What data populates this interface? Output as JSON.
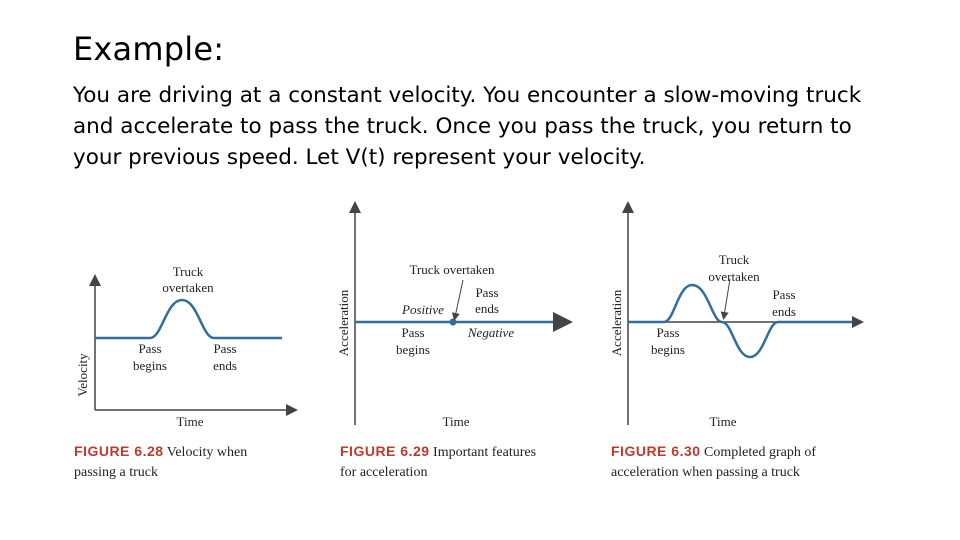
{
  "slide": {
    "title": "Example:",
    "paragraph": "You are driving at a constant velocity.  You encounter a slow-moving truck and accelerate to pass the truck.  Once you pass the truck, you return to your previous speed.  Let V(t) represent your velocity."
  },
  "figures": [
    {
      "id": "fig-6-28",
      "ylabel": "Velocity",
      "xlabel": "Time",
      "labels": {
        "peak": [
          "Truck",
          "overtaken"
        ],
        "begin": [
          "Pass",
          "begins"
        ],
        "end": [
          "Pass",
          "ends"
        ]
      },
      "caption_num": "FIGURE 6.28",
      "caption_text": [
        "Velocity when",
        "passing a truck"
      ]
    },
    {
      "id": "fig-6-29",
      "ylabel": "Acceleration",
      "xlabel": "Time",
      "labels": {
        "overtaken": "Truck overtaken",
        "end": [
          "Pass",
          "ends"
        ],
        "positive": "Positive",
        "negative": "Negative",
        "begin": [
          "Pass",
          "begins"
        ]
      },
      "caption_num": "FIGURE 6.29",
      "caption_text": [
        "Important features",
        "for acceleration"
      ]
    },
    {
      "id": "fig-6-30",
      "ylabel": "Acceleration",
      "xlabel": "Time",
      "labels": {
        "overtaken": [
          "Truck",
          "overtaken"
        ],
        "begin": [
          "Pass",
          "begins"
        ],
        "end": [
          "Pass",
          "ends"
        ]
      },
      "caption_num": "FIGURE 6.30",
      "caption_text": [
        "Completed graph of",
        "acceleration when passing a truck"
      ]
    }
  ],
  "colors": {
    "curve": "#2e6f9e",
    "axis": "#444444",
    "caption_num": "#c0392b"
  }
}
